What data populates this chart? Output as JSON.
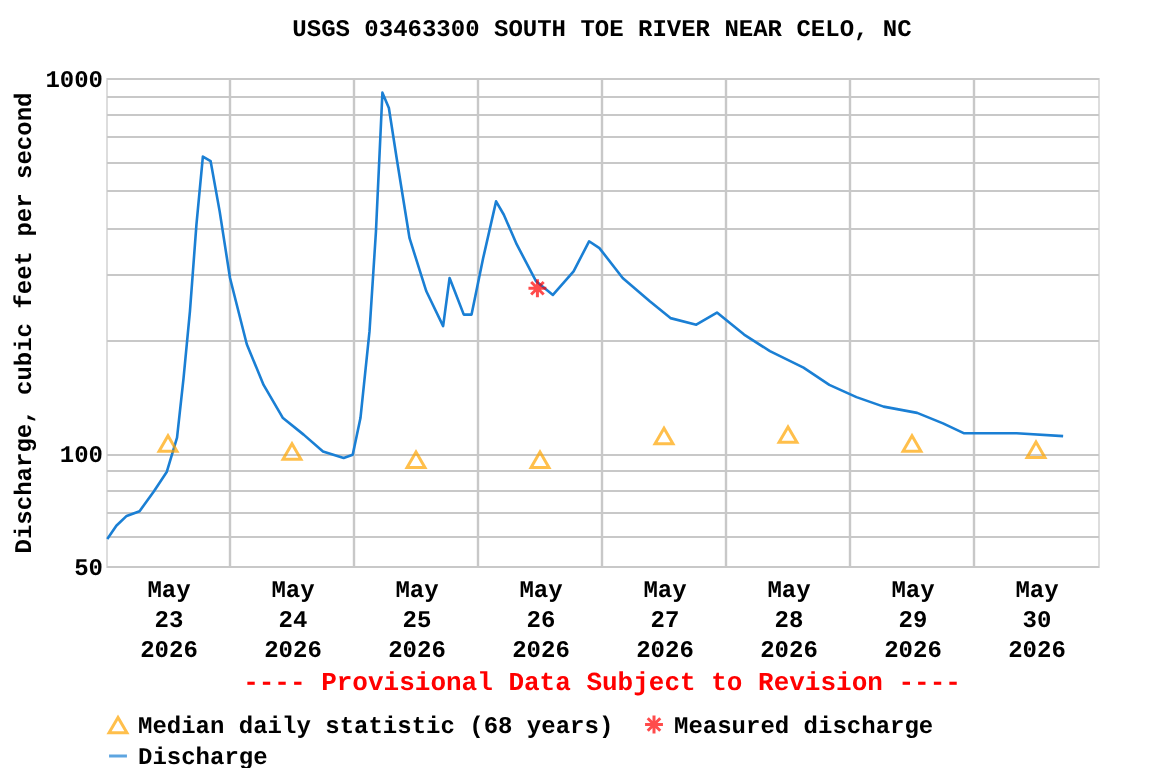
{
  "chart_data": {
    "type": "line",
    "title": "USGS 03463300 SOUTH TOE RIVER NEAR CELO, NC",
    "ylabel": "Discharge, cubic feet per second",
    "annotations": [
      "---- Provisional Data Subject to Revision ----"
    ],
    "log": "y",
    "grid": true,
    "legend": "bottom",
    "xlim": [
      "2026-05-23T00:00",
      "2026-05-31T00:00"
    ],
    "xticks": [
      {
        "value": "2026-05-23T12:00",
        "label": "May 23 2026"
      },
      {
        "value": "2026-05-24T12:00",
        "label": "May 24 2026"
      },
      {
        "value": "2026-05-25T12:00",
        "label": "May 25 2026"
      },
      {
        "value": "2026-05-26T12:00",
        "label": "May 26 2026"
      },
      {
        "value": "2026-05-27T12:00",
        "label": "May 27 2026"
      },
      {
        "value": "2026-05-28T12:00",
        "label": "May 28 2026"
      },
      {
        "value": "2026-05-29T12:00",
        "label": "May 29 2026"
      },
      {
        "value": "2026-05-30T12:00",
        "label": "May 30 2026"
      },
      {
        "value": "2026-05-24T00:00",
        "label": null
      },
      {
        "value": "2026-05-25T00:00",
        "label": null
      },
      {
        "value": "2026-05-26T00:00",
        "label": null
      },
      {
        "value": "2026-05-27T00:00",
        "label": null
      },
      {
        "value": "2026-05-28T00:00",
        "label": null
      },
      {
        "value": "2026-05-29T00:00",
        "label": null
      },
      {
        "value": "2026-05-30T00:00",
        "label": null
      }
    ],
    "ylim": [
      50,
      1000
    ],
    "yticks": [
      50,
      {
        "value": 60,
        "label": null
      },
      {
        "value": 70,
        "label": null
      },
      {
        "value": 80,
        "label": null
      },
      {
        "value": 90,
        "label": null
      },
      100,
      {
        "value": 200,
        "label": null
      },
      {
        "value": 300,
        "label": null
      },
      {
        "value": 400,
        "label": null
      },
      {
        "value": 500,
        "label": null
      },
      {
        "value": 600,
        "label": null
      },
      {
        "value": 700,
        "label": null
      },
      {
        "value": 800,
        "label": null
      },
      {
        "value": 900,
        "label": null
      },
      1000
    ],
    "series": [
      {
        "name": "Median daily statistic (68 years)",
        "type": "scatter",
        "marker": "triangle",
        "color": "#ffa500",
        "x": [
          "2026-05-23T12:00",
          "2026-05-24T12:00",
          "2026-05-25T12:00",
          "2026-05-26T12:00",
          "2026-05-27T12:00",
          "2026-05-28T12:00",
          "2026-05-29T12:00",
          "2026-05-30T12:00"
        ],
        "values": [
          106,
          101,
          96,
          96,
          111,
          112,
          106,
          102
        ]
      },
      {
        "name": "Measured discharge",
        "type": "scatter",
        "marker": "cross",
        "color": "#ff0000",
        "x": [
          "2026-05-26T11:30"
        ],
        "values": [
          275
        ]
      },
      {
        "name": "Discharge",
        "marker": "none",
        "color": "#1a7fd4",
        "x": [
          "2026-05-23T00:15",
          "2026-05-23T02:00",
          "2026-05-23T04:00",
          "2026-05-23T06:30",
          "2026-05-23T09:15",
          "2026-05-23T11:45",
          "2026-05-23T13:45",
          "2026-05-23T15:00",
          "2026-05-23T16:15",
          "2026-05-23T17:30",
          "2026-05-23T18:45",
          "2026-05-23T20:15",
          "2026-05-23T22:00",
          "2026-05-24T00:00",
          "2026-05-24T03:15",
          "2026-05-24T06:30",
          "2026-05-24T10:15",
          "2026-05-24T14:15",
          "2026-05-24T18:00",
          "2026-05-24T22:00",
          "2026-05-24T23:45",
          "2026-05-25T01:15",
          "2026-05-25T03:00",
          "2026-05-25T04:15",
          "2026-05-25T05:30",
          "2026-05-25T06:45",
          "2026-05-25T08:15",
          "2026-05-25T10:45",
          "2026-05-25T14:00",
          "2026-05-25T17:15",
          "2026-05-25T18:30",
          "2026-05-25T19:30",
          "2026-05-25T21:15",
          "2026-05-25T22:45",
          "2026-05-26T01:00",
          "2026-05-26T03:30",
          "2026-05-26T05:00",
          "2026-05-26T07:30",
          "2026-05-26T11:15",
          "2026-05-26T14:30",
          "2026-05-26T18:30",
          "2026-05-26T21:30",
          "2026-05-26T23:30",
          "2026-05-27T04:00",
          "2026-05-27T09:15",
          "2026-05-27T13:15",
          "2026-05-27T18:15",
          "2026-05-27T22:15",
          "2026-05-28T03:30",
          "2026-05-28T08:30",
          "2026-05-28T15:00",
          "2026-05-28T20:00",
          "2026-05-29T01:15",
          "2026-05-29T06:30",
          "2026-05-29T13:00",
          "2026-05-29T18:00",
          "2026-05-29T22:00",
          "2026-05-30T08:15",
          "2026-05-30T17:15"
        ],
        "values": [
          59,
          64,
          68,
          70,
          79,
          89,
          110,
          158,
          239,
          406,
          617,
          600,
          441,
          293,
          195,
          152,
          124,
          112,
          101,
          97,
          99,
          124,
          211,
          390,
          914,
          832,
          612,
          374,
          270,
          218,
          293,
          270,
          234,
          234,
          331,
          469,
          432,
          360,
          287,
          264,
          305,
          367,
          352,
          293,
          254,
          229,
          220,
          237,
          207,
          187,
          169,
          152,
          141,
          133,
          128,
          120,
          113,
          113,
          111
        ]
      }
    ]
  }
}
